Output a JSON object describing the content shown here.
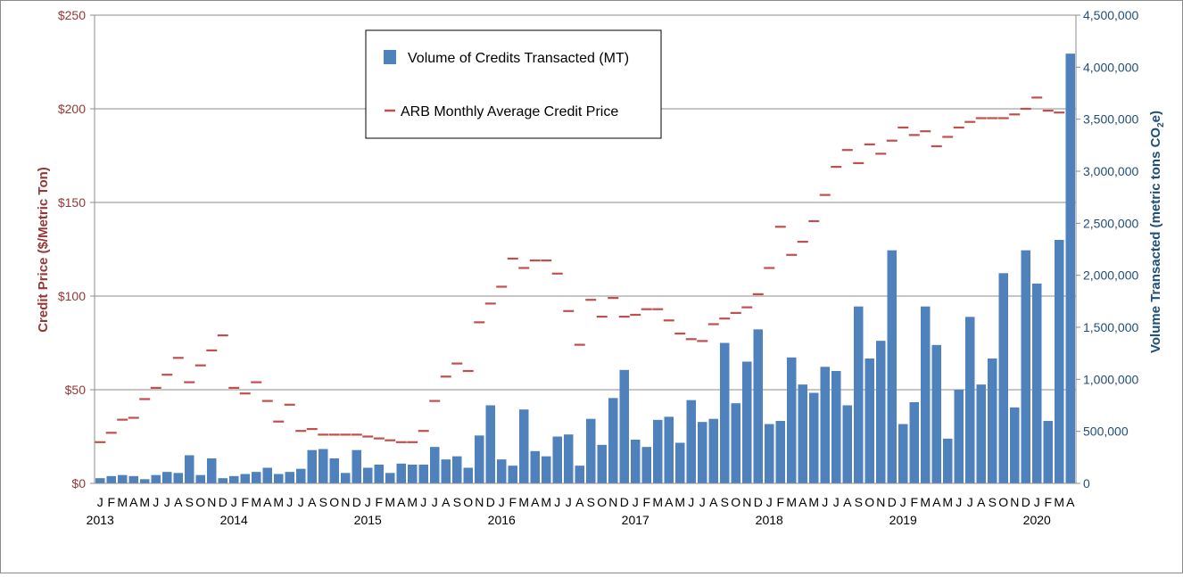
{
  "chart_data": {
    "type": "bar+line",
    "title": "",
    "left_axis": {
      "label": "Credit Price  ($/Metric Ton)",
      "ylim": [
        0,
        250
      ],
      "ticks": [
        0,
        50,
        100,
        150,
        200,
        250
      ],
      "tick_labels": [
        "$0",
        "$50",
        "$100",
        "$150",
        "$200",
        "$250"
      ],
      "color": "#953735"
    },
    "right_axis": {
      "label_main": "Volume Transacted (metric tons CO",
      "label_sub": "2",
      "label_end": "e)",
      "ylim": [
        0,
        4500000
      ],
      "ticks": [
        0,
        500000,
        1000000,
        1500000,
        2000000,
        2500000,
        3000000,
        3500000,
        4000000,
        4500000
      ],
      "tick_labels": [
        "0",
        "500,000",
        "1,000,000",
        "1,500,000",
        "2,000,000",
        "2,500,000",
        "3,000,000",
        "3,500,000",
        "4,000,000",
        "4,500,000"
      ],
      "color": "#1f4e79"
    },
    "grid": true,
    "legend": {
      "placement": "top-center",
      "entries": [
        {
          "label": "Volume of Credits Transacted (MT)",
          "color": "#4f81bd",
          "kind": "bar"
        },
        {
          "label": "ARB Monthly Average Credit Price",
          "color": "#c0504d",
          "kind": "dash"
        }
      ]
    },
    "month_labels": [
      "J",
      "F",
      "M",
      "A",
      "M",
      "J",
      "J",
      "A",
      "S",
      "O",
      "N",
      "D",
      "J",
      "F",
      "M",
      "A",
      "M",
      "J",
      "J",
      "A",
      "S",
      "O",
      "N",
      "D",
      "J",
      "F",
      "M",
      "A",
      "M",
      "J",
      "J",
      "A",
      "S",
      "O",
      "N",
      "D",
      "J",
      "F",
      "M",
      "A",
      "M",
      "J",
      "J",
      "A",
      "S",
      "O",
      "N",
      "D",
      "J",
      "F",
      "M",
      "A",
      "M",
      "J",
      "J",
      "A",
      "S",
      "O",
      "N",
      "D",
      "J",
      "F",
      "M",
      "A",
      "M",
      "J",
      "J",
      "A",
      "S",
      "O",
      "N",
      "D",
      "J",
      "F",
      "M",
      "A",
      "M",
      "J",
      "J",
      "A",
      "S",
      "O",
      "N",
      "D",
      "J",
      "F",
      "M",
      "A"
    ],
    "year_labels": [
      {
        "label": "2013",
        "index": 0
      },
      {
        "label": "2014",
        "index": 12
      },
      {
        "label": "2015",
        "index": 24
      },
      {
        "label": "2016",
        "index": 36
      },
      {
        "label": "2017",
        "index": 48
      },
      {
        "label": "2018",
        "index": 60
      },
      {
        "label": "2019",
        "index": 72
      },
      {
        "label": "2020",
        "index": 84
      }
    ],
    "series": [
      {
        "name": "Volume of Credits Transacted (MT)",
        "axis": "right",
        "type": "bar",
        "values": [
          50000,
          70000,
          80000,
          70000,
          40000,
          80000,
          110000,
          100000,
          270000,
          80000,
          240000,
          50000,
          70000,
          90000,
          110000,
          150000,
          90000,
          110000,
          140000,
          320000,
          330000,
          240000,
          100000,
          320000,
          150000,
          180000,
          100000,
          190000,
          180000,
          180000,
          350000,
          230000,
          260000,
          150000,
          460000,
          750000,
          230000,
          170000,
          710000,
          310000,
          260000,
          450000,
          470000,
          170000,
          620000,
          370000,
          820000,
          1090000,
          420000,
          350000,
          610000,
          640000,
          390000,
          800000,
          590000,
          620000,
          1350000,
          770000,
          1170000,
          1480000,
          570000,
          600000,
          1210000,
          950000,
          870000,
          1120000,
          1080000,
          750000,
          1700000,
          1200000,
          1370000,
          2240000,
          570000,
          780000,
          1700000,
          1330000,
          430000,
          900000,
          1600000,
          950000,
          1200000,
          2020000,
          730000,
          2240000,
          1920000,
          600000,
          2340000,
          4130000
        ]
      },
      {
        "name": "ARB Monthly Average Credit Price",
        "axis": "left",
        "type": "dash",
        "values": [
          22,
          27,
          34,
          35,
          45,
          51,
          58,
          67,
          54,
          63,
          71,
          79,
          51,
          48,
          54,
          44,
          33,
          42,
          28,
          29,
          26,
          26,
          26,
          26,
          25,
          24,
          23,
          22,
          22,
          28,
          44,
          57,
          64,
          60,
          86,
          96,
          105,
          120,
          115,
          119,
          119,
          112,
          92,
          74,
          98,
          89,
          99,
          89,
          90,
          93,
          93,
          87,
          80,
          77,
          76,
          85,
          88,
          91,
          94,
          101,
          115,
          137,
          122,
          129,
          140,
          154,
          169,
          178,
          171,
          181,
          176,
          183,
          190,
          186,
          188,
          180,
          185,
          190,
          193,
          195,
          195,
          195,
          197,
          200,
          206,
          199,
          198
        ]
      }
    ]
  }
}
